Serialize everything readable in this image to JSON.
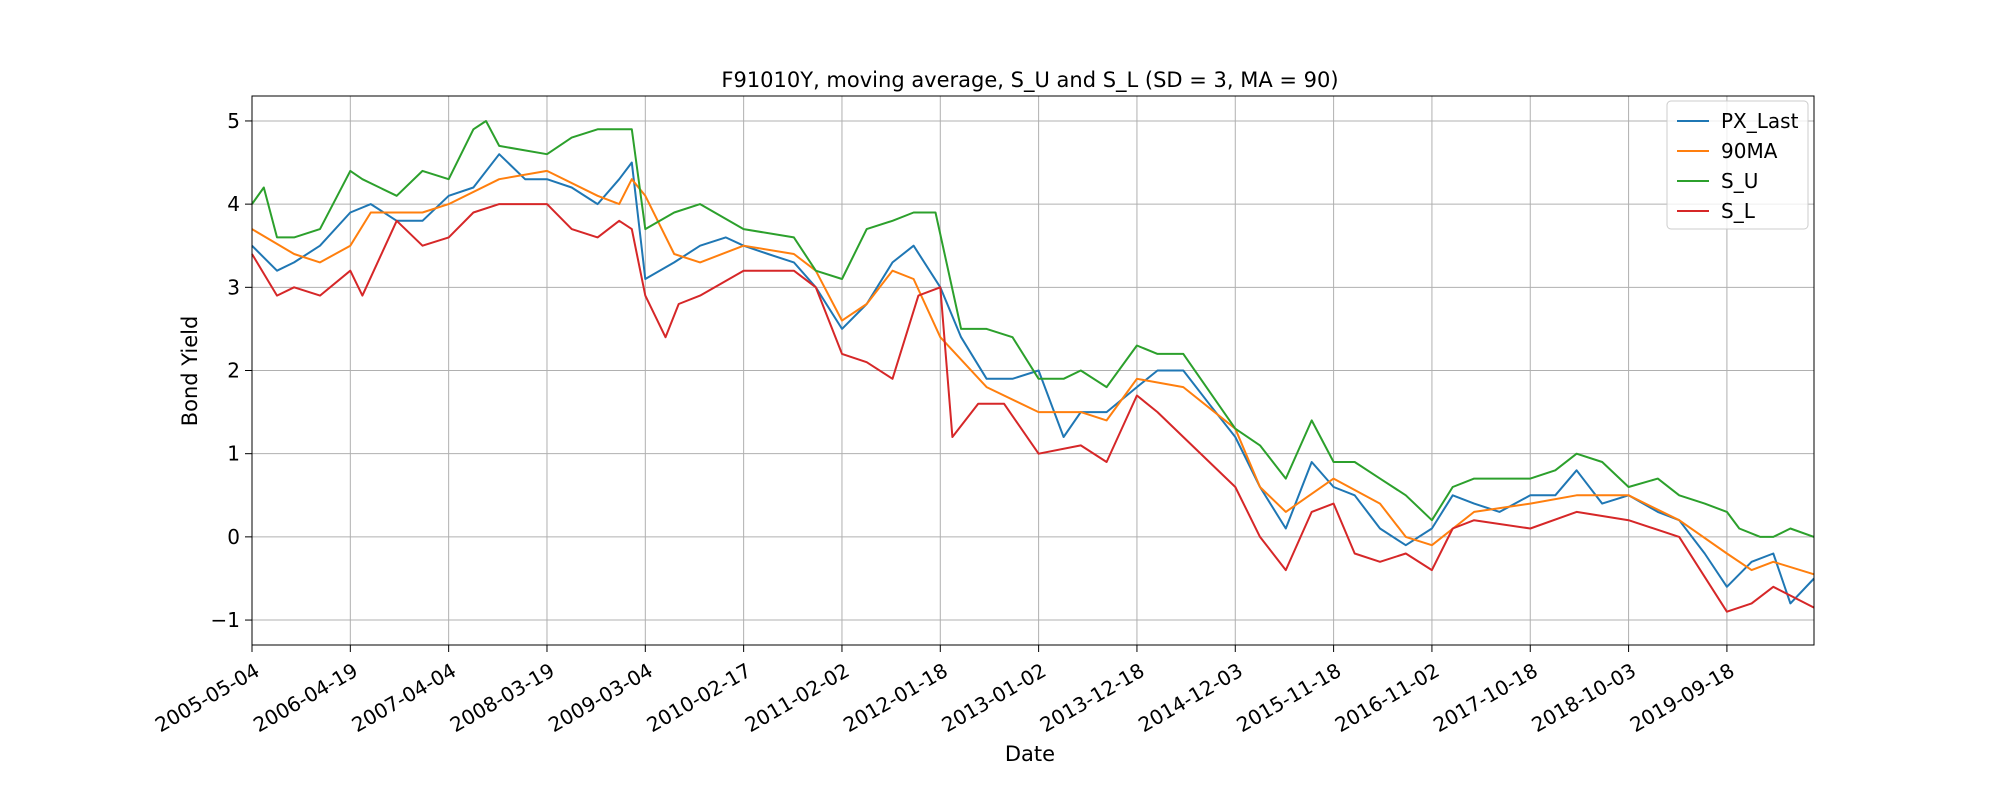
{
  "chart_data": {
    "type": "line",
    "title": "F91010Y, moving average, S_U and S_L (SD = 3, MA = 90)",
    "xlabel": "Date",
    "ylabel": "Bond Yield",
    "x_ticks": [
      "2005-05-04",
      "2006-04-19",
      "2007-04-04",
      "2008-03-19",
      "2009-03-04",
      "2010-02-17",
      "2011-02-02",
      "2012-01-18",
      "2013-01-02",
      "2013-12-18",
      "2014-12-03",
      "2015-11-18",
      "2016-11-02",
      "2017-10-18",
      "2018-10-03",
      "2019-09-18"
    ],
    "xlim": [
      "2005-05-04",
      "2020-07-24"
    ],
    "y_ticks": [
      -1,
      0,
      1,
      2,
      3,
      4,
      5
    ],
    "ylim": [
      -1.3,
      5.3
    ],
    "grid": true,
    "legend_position": "top-right",
    "series": [
      {
        "name": "PX_Last",
        "color": "#1f77b4",
        "x": [
          "2005-05-04",
          "2005-08-01",
          "2005-10-01",
          "2006-01-01",
          "2006-04-19",
          "2006-07-01",
          "2006-10-01",
          "2007-01-01",
          "2007-04-04",
          "2007-07-01",
          "2007-10-01",
          "2008-01-01",
          "2008-03-19",
          "2008-06-15",
          "2008-09-15",
          "2008-12-01",
          "2009-01-15",
          "2009-03-04",
          "2009-06-15",
          "2009-09-15",
          "2009-12-15",
          "2010-02-17",
          "2010-05-15",
          "2010-08-15",
          "2010-11-01",
          "2011-02-02",
          "2011-05-01",
          "2011-08-01",
          "2011-10-15",
          "2012-01-18",
          "2012-04-01",
          "2012-07-01",
          "2012-10-01",
          "2013-01-02",
          "2013-04-01",
          "2013-06-01",
          "2013-09-01",
          "2013-12-18",
          "2014-03-01",
          "2014-06-01",
          "2014-09-01",
          "2014-12-03",
          "2015-03-01",
          "2015-06-01",
          "2015-09-01",
          "2015-11-18",
          "2016-02-01",
          "2016-05-01",
          "2016-08-01",
          "2016-11-02",
          "2017-01-15",
          "2017-04-01",
          "2017-07-01",
          "2017-10-18",
          "2018-01-15",
          "2018-04-01",
          "2018-07-01",
          "2018-10-03",
          "2019-01-15",
          "2019-04-01",
          "2019-07-01",
          "2019-09-18",
          "2019-12-15",
          "2020-03-01",
          "2020-05-01",
          "2020-07-24"
        ],
        "y": [
          3.5,
          3.2,
          3.3,
          3.5,
          3.9,
          4.0,
          3.8,
          3.8,
          4.1,
          4.2,
          4.6,
          4.3,
          4.3,
          4.2,
          4.0,
          4.3,
          4.5,
          3.1,
          3.3,
          3.5,
          3.6,
          3.5,
          3.4,
          3.3,
          3.0,
          2.5,
          2.8,
          3.3,
          3.5,
          3.0,
          2.4,
          1.9,
          1.9,
          2.0,
          1.2,
          1.5,
          1.5,
          1.8,
          2.0,
          2.0,
          1.6,
          1.2,
          0.6,
          0.1,
          0.9,
          0.6,
          0.5,
          0.1,
          -0.1,
          0.1,
          0.5,
          0.4,
          0.3,
          0.5,
          0.5,
          0.8,
          0.4,
          0.5,
          0.3,
          0.2,
          -0.2,
          -0.6,
          -0.3,
          -0.2,
          -0.8,
          -0.5
        ]
      },
      {
        "name": "90MA",
        "color": "#ff7f0e",
        "x": [
          "2005-05-04",
          "2005-10-01",
          "2006-01-01",
          "2006-04-19",
          "2006-07-01",
          "2007-01-01",
          "2007-04-04",
          "2007-10-01",
          "2008-03-19",
          "2008-09-15",
          "2008-12-01",
          "2009-01-15",
          "2009-03-04",
          "2009-06-15",
          "2009-09-15",
          "2010-02-17",
          "2010-08-15",
          "2010-11-01",
          "2011-02-02",
          "2011-05-01",
          "2011-08-01",
          "2011-10-15",
          "2012-01-18",
          "2012-07-01",
          "2013-01-02",
          "2013-06-01",
          "2013-09-01",
          "2013-12-18",
          "2014-06-01",
          "2014-12-03",
          "2015-03-01",
          "2015-06-01",
          "2015-11-18",
          "2016-05-01",
          "2016-08-01",
          "2016-11-02",
          "2017-04-01",
          "2017-10-18",
          "2018-04-01",
          "2018-10-03",
          "2019-04-01",
          "2019-09-18",
          "2019-12-15",
          "2020-03-01",
          "2020-07-24"
        ],
        "y": [
          3.7,
          3.4,
          3.3,
          3.5,
          3.9,
          3.9,
          4.0,
          4.3,
          4.4,
          4.1,
          4.0,
          4.3,
          4.1,
          3.4,
          3.3,
          3.5,
          3.4,
          3.2,
          2.6,
          2.8,
          3.2,
          3.1,
          2.4,
          1.8,
          1.5,
          1.5,
          1.4,
          1.9,
          1.8,
          1.3,
          0.6,
          0.3,
          0.7,
          0.4,
          0.0,
          -0.1,
          0.3,
          0.4,
          0.5,
          0.5,
          0.2,
          -0.2,
          -0.4,
          -0.3,
          -0.45
        ]
      },
      {
        "name": "S_U",
        "color": "#2ca02c",
        "x": [
          "2005-05-04",
          "2005-06-15",
          "2005-08-01",
          "2005-10-01",
          "2006-01-01",
          "2006-04-19",
          "2006-06-01",
          "2006-10-01",
          "2007-01-01",
          "2007-04-04",
          "2007-07-01",
          "2007-08-15",
          "2007-10-01",
          "2008-03-19",
          "2008-06-15",
          "2008-09-15",
          "2008-11-01",
          "2009-01-15",
          "2009-03-04",
          "2009-06-15",
          "2009-09-15",
          "2010-02-17",
          "2010-08-15",
          "2010-11-01",
          "2011-02-02",
          "2011-05-01",
          "2011-08-01",
          "2011-10-15",
          "2012-01-01",
          "2012-04-01",
          "2012-07-01",
          "2012-10-01",
          "2013-01-02",
          "2013-04-01",
          "2013-06-01",
          "2013-09-01",
          "2013-12-18",
          "2014-03-01",
          "2014-06-01",
          "2014-12-03",
          "2015-03-01",
          "2015-06-01",
          "2015-09-01",
          "2015-11-18",
          "2016-02-01",
          "2016-05-01",
          "2016-08-01",
          "2016-11-02",
          "2017-01-15",
          "2017-04-01",
          "2017-10-18",
          "2018-01-15",
          "2018-04-01",
          "2018-07-01",
          "2018-10-03",
          "2019-01-15",
          "2019-04-01",
          "2019-07-01",
          "2019-09-18",
          "2019-11-01",
          "2020-01-15",
          "2020-03-01",
          "2020-05-01",
          "2020-07-24"
        ],
        "y": [
          4.0,
          4.2,
          3.6,
          3.6,
          3.7,
          4.4,
          4.3,
          4.1,
          4.4,
          4.3,
          4.9,
          5.0,
          4.7,
          4.6,
          4.8,
          4.9,
          4.9,
          4.9,
          3.7,
          3.9,
          4.0,
          3.7,
          3.6,
          3.2,
          3.1,
          3.7,
          3.8,
          3.9,
          3.9,
          2.5,
          2.5,
          2.4,
          1.9,
          1.9,
          2.0,
          1.8,
          2.3,
          2.2,
          2.2,
          1.3,
          1.1,
          0.7,
          1.4,
          0.9,
          0.9,
          0.7,
          0.5,
          0.2,
          0.6,
          0.7,
          0.7,
          0.8,
          1.0,
          0.9,
          0.6,
          0.7,
          0.5,
          0.4,
          0.3,
          0.1,
          0.0,
          0.0,
          0.1,
          0.0
        ]
      },
      {
        "name": "S_L",
        "color": "#d62728",
        "x": [
          "2005-05-04",
          "2005-08-01",
          "2005-10-01",
          "2006-01-01",
          "2006-04-19",
          "2006-06-01",
          "2006-10-01",
          "2007-01-01",
          "2007-04-04",
          "2007-07-01",
          "2007-10-01",
          "2008-03-19",
          "2008-06-15",
          "2008-09-15",
          "2008-12-01",
          "2009-01-15",
          "2009-03-04",
          "2009-05-15",
          "2009-07-01",
          "2009-09-15",
          "2010-02-17",
          "2010-08-15",
          "2010-11-01",
          "2011-02-02",
          "2011-05-01",
          "2011-08-01",
          "2011-11-01",
          "2012-01-18",
          "2012-03-01",
          "2012-06-01",
          "2012-09-01",
          "2013-01-02",
          "2013-06-01",
          "2013-09-01",
          "2013-12-18",
          "2014-03-01",
          "2014-06-01",
          "2014-12-03",
          "2015-03-01",
          "2015-06-01",
          "2015-09-01",
          "2015-11-18",
          "2016-02-01",
          "2016-05-01",
          "2016-08-01",
          "2016-11-02",
          "2017-01-15",
          "2017-04-01",
          "2017-10-18",
          "2018-04-01",
          "2018-10-03",
          "2019-04-01",
          "2019-09-18",
          "2019-12-15",
          "2020-03-01",
          "2020-07-24"
        ],
        "y": [
          3.4,
          2.9,
          3.0,
          2.9,
          3.2,
          2.9,
          3.8,
          3.5,
          3.6,
          3.9,
          4.0,
          4.0,
          3.7,
          3.6,
          3.8,
          3.7,
          2.9,
          2.4,
          2.8,
          2.9,
          3.2,
          3.2,
          3.0,
          2.2,
          2.1,
          1.9,
          2.9,
          3.0,
          1.2,
          1.6,
          1.6,
          1.0,
          1.1,
          0.9,
          1.7,
          1.5,
          1.2,
          0.6,
          0.0,
          -0.4,
          0.3,
          0.4,
          -0.2,
          -0.3,
          -0.2,
          -0.4,
          0.1,
          0.2,
          0.1,
          0.3,
          0.2,
          0.0,
          -0.9,
          -0.8,
          -0.6,
          -0.85
        ]
      }
    ]
  }
}
